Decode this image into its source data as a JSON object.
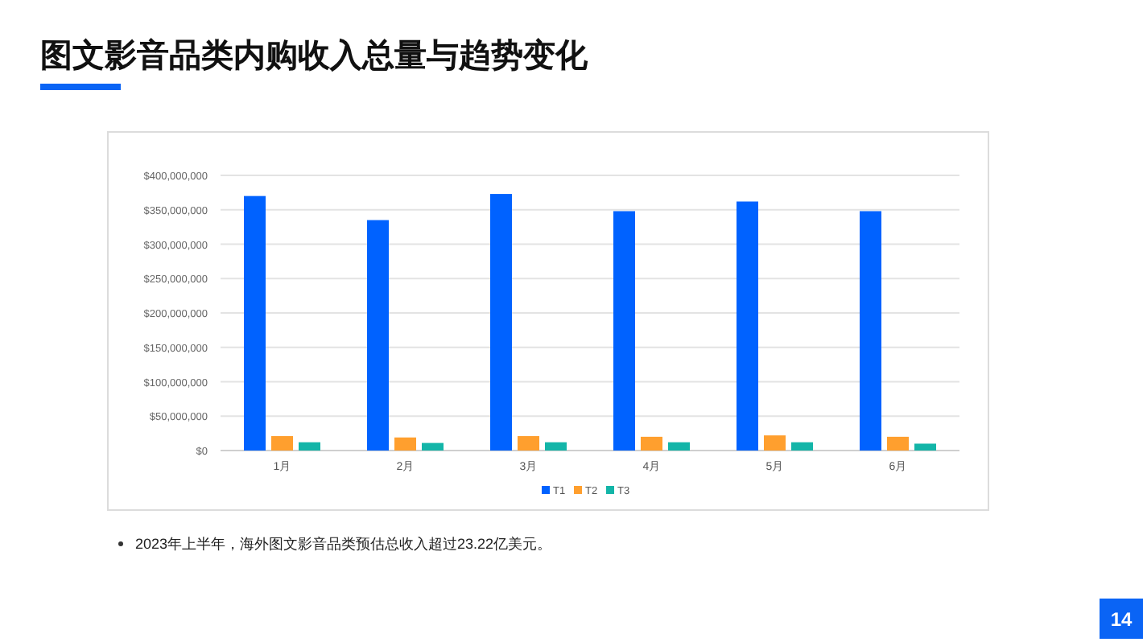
{
  "chart_data": {
    "type": "bar",
    "title": "图文影音品类内购收入总量与趋势变化",
    "categories": [
      "1月",
      "2月",
      "3月",
      "4月",
      "5月",
      "6月"
    ],
    "series": [
      {
        "name": "T1",
        "color": "#0062ff",
        "values": [
          370000000,
          335000000,
          373000000,
          348000000,
          362000000,
          348000000
        ]
      },
      {
        "name": "T2",
        "color": "#ff9f2e",
        "values": [
          21000000,
          19000000,
          21000000,
          20000000,
          22000000,
          20000000
        ]
      },
      {
        "name": "T3",
        "color": "#13b5a8",
        "values": [
          12000000,
          11000000,
          12000000,
          12000000,
          12000000,
          10000000
        ]
      }
    ],
    "ylim": [
      0,
      400000000
    ],
    "yticks": [
      {
        "value": 0,
        "label": "$0"
      },
      {
        "value": 50000000,
        "label": "$50,000,000"
      },
      {
        "value": 100000000,
        "label": "$100,000,000"
      },
      {
        "value": 150000000,
        "label": "$150,000,000"
      },
      {
        "value": 200000000,
        "label": "$200,000,000"
      },
      {
        "value": 250000000,
        "label": "$250,000,000"
      },
      {
        "value": 300000000,
        "label": "$300,000,000"
      },
      {
        "value": 350000000,
        "label": "$350,000,000"
      },
      {
        "value": 400000000,
        "label": "$400,000,000"
      }
    ],
    "grid": "y",
    "legend": "bottom",
    "annotations": [
      "2023年上半年，海外图文影音品类预估总收入超过23.22亿美元。",
      "14"
    ]
  }
}
